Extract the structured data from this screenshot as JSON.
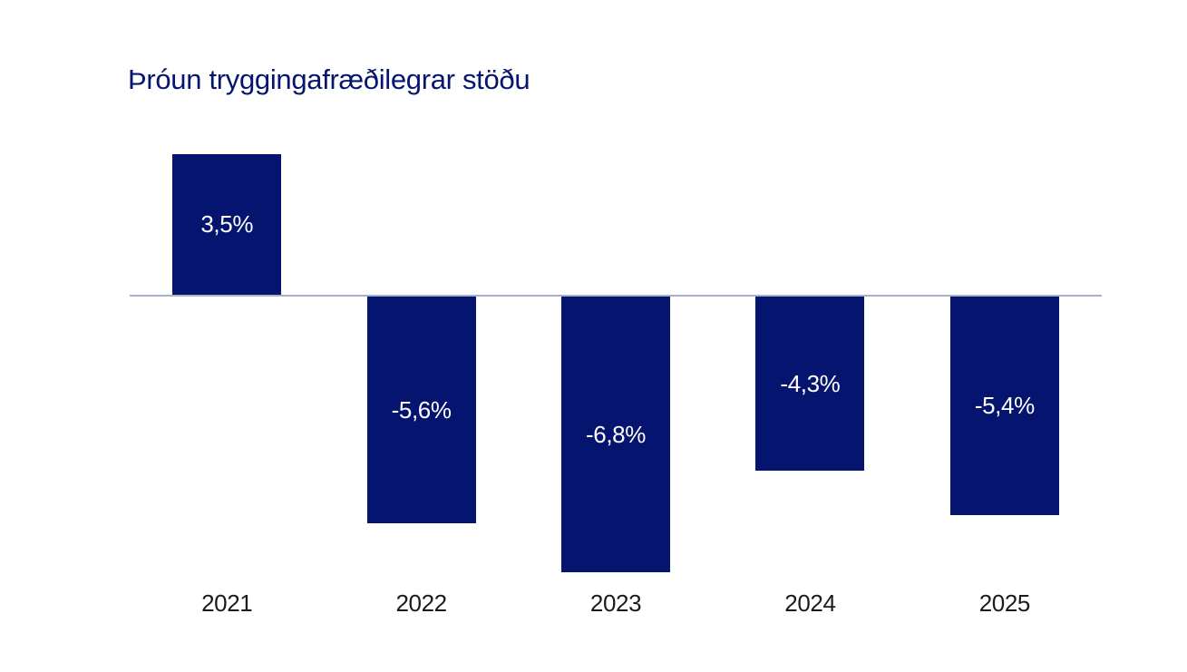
{
  "chart_data": {
    "type": "bar",
    "title": "Þróun tryggingafræðilegrar stöðu",
    "categories": [
      "2021",
      "2022",
      "2023",
      "2024",
      "2025"
    ],
    "values": [
      3.5,
      -5.6,
      -6.8,
      -4.3,
      -5.4
    ],
    "value_labels": [
      "3,5%",
      "-5,6%",
      "-6,8%",
      "-4,3%",
      "-5,4%"
    ],
    "unit": "%",
    "baseline": 0,
    "ylim": [
      -7,
      4
    ],
    "grid": false,
    "legend": false,
    "value_label_position": "inside-center",
    "colors": {
      "bar": "#05156f",
      "bar_value_label": "#ffffff",
      "title": "#05156f",
      "category_label": "#1a1a1a",
      "axis_line": "#a9b0cb",
      "background": "#ffffff"
    }
  }
}
